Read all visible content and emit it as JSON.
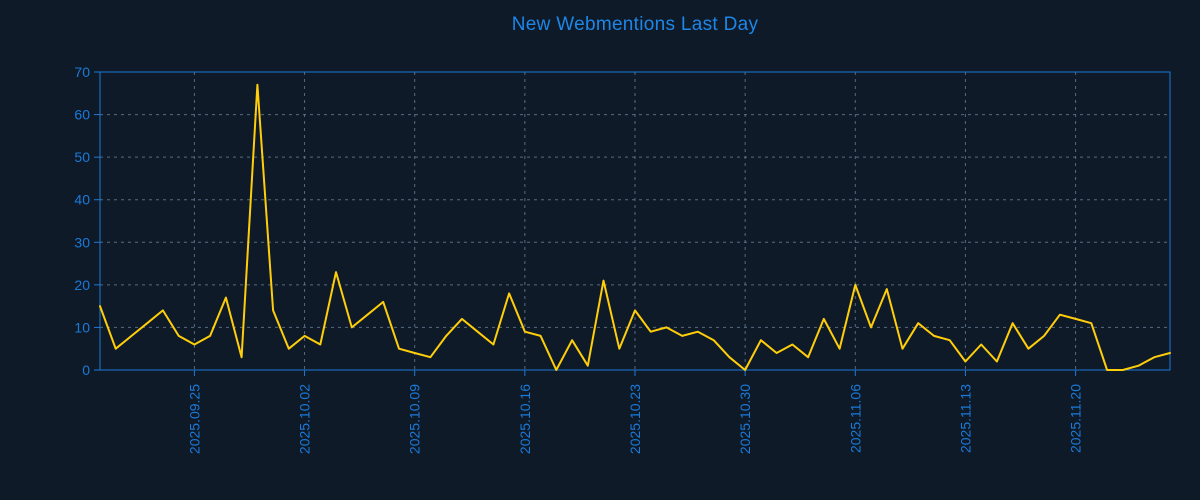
{
  "title": "New Webmentions Last Day",
  "colors": {
    "background": "#0f1a28",
    "title_blue": "#1d86e8",
    "axis_blue": "#1a7ad9",
    "grid_gray": "#64788f",
    "line_yellow": "#ffce0a"
  },
  "chart_data": {
    "type": "line",
    "title": "New Webmentions Last Day",
    "xlabel": "",
    "ylabel": "",
    "grid": true,
    "legend": "none",
    "ylim": [
      0,
      70
    ],
    "y_ticks": [
      0,
      10,
      20,
      30,
      40,
      50,
      60,
      70
    ],
    "x_tick_labels": [
      "2025.09.25",
      "2025.10.02",
      "2025.10.09",
      "2025.10.16",
      "2025.10.23",
      "2025.10.30",
      "2025.11.06",
      "2025.11.13",
      "2025.11.20"
    ],
    "x_tick_indices": [
      6,
      13,
      20,
      27,
      34,
      41,
      48,
      55,
      62
    ],
    "values": [
      15,
      5,
      8,
      11,
      14,
      8,
      6,
      8,
      17,
      3,
      67,
      14,
      5,
      8,
      6,
      23,
      10,
      13,
      16,
      5,
      4,
      3,
      8,
      12,
      9,
      6,
      18,
      9,
      8,
      0,
      7,
      1,
      21,
      5,
      14,
      9,
      10,
      8,
      9,
      7,
      3,
      0,
      7,
      4,
      6,
      3,
      12,
      5,
      20,
      10,
      19,
      5,
      11,
      8,
      7,
      2,
      6,
      2,
      11,
      5,
      8,
      13,
      12,
      11,
      0,
      0,
      1,
      3,
      4
    ]
  }
}
